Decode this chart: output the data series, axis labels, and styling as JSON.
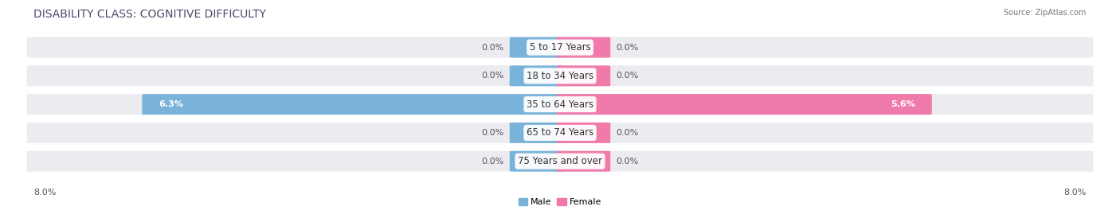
{
  "title": "DISABILITY CLASS: COGNITIVE DIFFICULTY",
  "source": "Source: ZipAtlas.com",
  "categories": [
    "5 to 17 Years",
    "18 to 34 Years",
    "35 to 64 Years",
    "65 to 74 Years",
    "75 Years and over"
  ],
  "male_values": [
    0.0,
    0.0,
    6.3,
    0.0,
    0.0
  ],
  "female_values": [
    0.0,
    0.0,
    5.6,
    0.0,
    0.0
  ],
  "male_color": "#7ab3d9",
  "female_color": "#f07aaa",
  "row_bg_color": "#ebebf0",
  "max_value": 8.0,
  "x_left_label": "8.0%",
  "x_right_label": "8.0%",
  "title_fontsize": 10,
  "source_fontsize": 7,
  "label_fontsize": 8,
  "cat_fontsize": 8.5,
  "background_color": "#ffffff",
  "stub_male_value": 0.6,
  "stub_female_value": 0.6
}
